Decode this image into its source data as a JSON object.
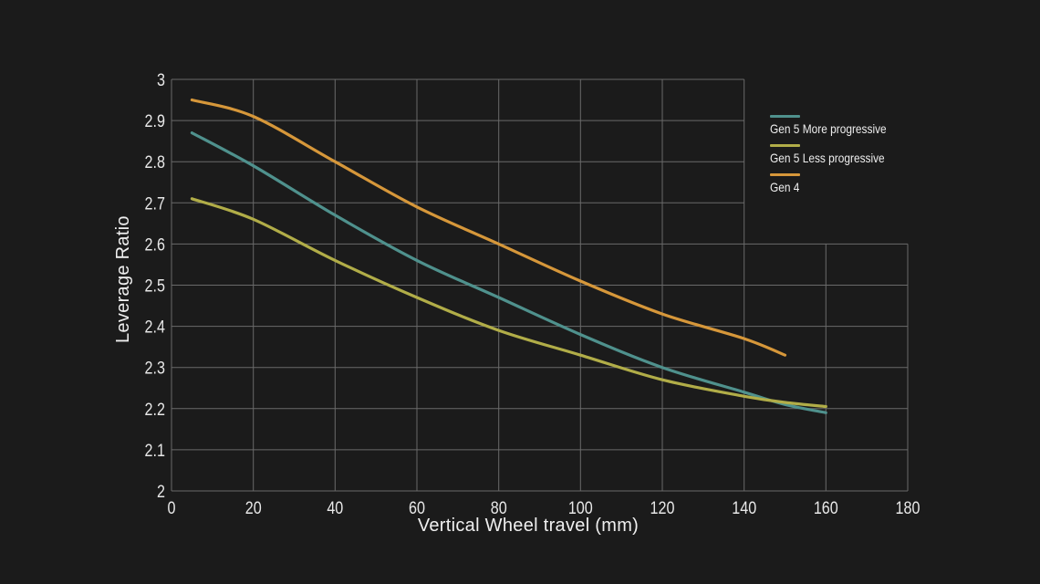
{
  "chart_data": {
    "type": "line",
    "title": "",
    "xlabel": "Vertical Wheel travel (mm)",
    "ylabel": "Leverage Ratio",
    "xlim": [
      0,
      180
    ],
    "ylim": [
      2,
      3
    ],
    "x_ticks": [
      0,
      20,
      40,
      60,
      80,
      100,
      120,
      140,
      160,
      180
    ],
    "y_ticks": [
      2,
      2.1,
      2.2,
      2.3,
      2.4,
      2.5,
      2.6,
      2.7,
      2.8,
      2.9,
      3
    ],
    "grid": true,
    "grid_cutout": {
      "note": "grid upper-right corner removed for legend",
      "above_y": 2.6,
      "right_of_x": 140
    },
    "legend_position": "top-right",
    "series": [
      {
        "name": "Gen 5 More progressive",
        "color": "#4f918d",
        "x": [
          5,
          20,
          40,
          60,
          80,
          100,
          120,
          140,
          150,
          160
        ],
        "y": [
          2.87,
          2.79,
          2.67,
          2.56,
          2.47,
          2.38,
          2.3,
          2.24,
          2.21,
          2.19
        ]
      },
      {
        "name": "Gen 5 Less progressive",
        "color": "#b1ad48",
        "x": [
          5,
          20,
          40,
          60,
          80,
          100,
          120,
          140,
          150,
          160
        ],
        "y": [
          2.71,
          2.66,
          2.56,
          2.47,
          2.39,
          2.33,
          2.27,
          2.23,
          2.215,
          2.205
        ]
      },
      {
        "name": "Gen 4",
        "color": "#d6973a",
        "x": [
          5,
          20,
          40,
          60,
          80,
          100,
          120,
          140,
          150
        ],
        "y": [
          2.95,
          2.91,
          2.8,
          2.69,
          2.6,
          2.51,
          2.43,
          2.37,
          2.33
        ]
      }
    ],
    "colors": {
      "background": "#1b1b1b",
      "gridline": "#6a6a6a",
      "tick_text": "#e8e8e8",
      "axis_title_text": "#efefef"
    }
  }
}
